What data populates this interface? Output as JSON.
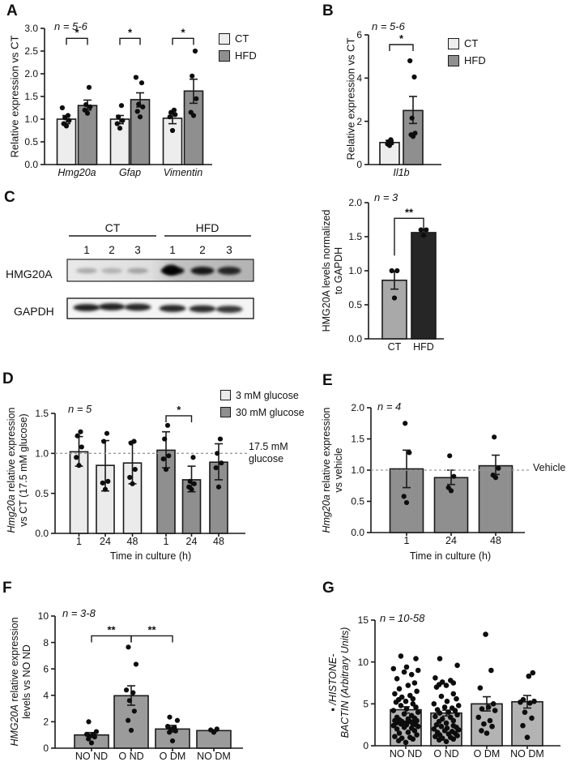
{
  "figure": {
    "panels": {
      "A": {
        "letter": "A",
        "n_label": "n = 5-6",
        "ylabel": {
          "em": "",
          "line1": "Relative expression vs CT",
          "line2": ""
        },
        "legend": [
          {
            "label": "CT",
            "color": "#ededed"
          },
          {
            "label": "HFD",
            "color": "#8f8f8f"
          }
        ]
      },
      "B": {
        "letter": "B",
        "n_label": "n = 5-6",
        "ylabel": {
          "em": "",
          "line1": "Relative expression vs CT",
          "line2": ""
        },
        "legend": [
          {
            "label": "CT",
            "color": "#ededed"
          },
          {
            "label": "HFD",
            "color": "#8f8f8f"
          }
        ]
      },
      "C": {
        "letter": "C",
        "n_label": "n = 3",
        "ylabel": {
          "em": "",
          "line1": "HMG20A levels normalized",
          "line2": "to GAPDH"
        },
        "blot": {
          "group_labels": [
            "CT",
            "HFD"
          ],
          "lane_numbers": [
            "1",
            "2",
            "3",
            "1",
            "2",
            "3"
          ],
          "row_labels": [
            "HMG20A",
            "GAPDH"
          ],
          "hmg20a_band_intensity": [
            0.5,
            0.42,
            0.55,
            0.95,
            0.88,
            0.8
          ],
          "gapdh_band_intensity": [
            0.95,
            0.95,
            0.92,
            0.92,
            0.9,
            0.85
          ]
        }
      },
      "D": {
        "letter": "D",
        "n_label": "n = 5",
        "ylabel": {
          "em": "Hmg20a",
          "line1": " relative expression",
          "line2": "vs CT (17.5 mM glucose)"
        },
        "xlabel": "Time in culture (h)",
        "legend": [
          {
            "label": "3 mM glucose",
            "color": "#ebebeb"
          },
          {
            "label": "30 mM glucose",
            "color": "#8f8f8f"
          }
        ],
        "annotation": [
          "17.5 mM",
          "glucose"
        ]
      },
      "E": {
        "letter": "E",
        "n_label": "n = 4",
        "ylabel": {
          "em": "Hmg20a",
          "line1": " relative expression",
          "line2": "vs vehicle"
        },
        "xlabel": "Time in culture (h)",
        "annotation": "Vehicle"
      },
      "F": {
        "letter": "F",
        "n_label": "n = 3-8",
        "ylabel": {
          "em": "HMG20A",
          "line1": " relative expression",
          "line2": "levels vs NO ND"
        }
      },
      "G": {
        "letter": "G",
        "n_label": "n = 10-58",
        "ylabel": {
          "em": "▪  /HISTONE-",
          "line1": "",
          "line2": "BACTIN (Arbitrary Units)"
        }
      }
    }
  },
  "chart_data": [
    {
      "panel": "A",
      "type": "bar",
      "title": "",
      "xlabel": "",
      "ylabel": "Relative expression vs CT",
      "ylim": [
        0,
        3
      ],
      "yticks": [
        0,
        0.5,
        1,
        1.5,
        2,
        2.5,
        3
      ],
      "ytick_labels": [
        "0.0",
        "0.5",
        "1.0",
        "1.5",
        "2.0",
        "2.5",
        "3.0"
      ],
      "categories": [
        "Hmg20a",
        "Gfap",
        "Vimentin"
      ],
      "categories_italic": true,
      "bars": [
        {
          "series": "CT",
          "category": "Hmg20a",
          "value": 1.0,
          "color": "#ededed",
          "err": [
            0.9,
            1.08
          ],
          "points": [
            0.85,
            0.9,
            0.97,
            1.03,
            1.08,
            1.25
          ]
        },
        {
          "series": "HFD",
          "category": "Hmg20a",
          "value": 1.3,
          "color": "#8f8f8f",
          "err": [
            1.2,
            1.42
          ],
          "points": [
            1.13,
            1.2,
            1.27,
            1.32,
            1.7
          ]
        },
        {
          "series": "CT",
          "category": "Gfap",
          "value": 1.0,
          "color": "#ededed",
          "err": [
            0.9,
            1.08
          ],
          "points": [
            0.8,
            0.9,
            0.97,
            1.05,
            1.3
          ]
        },
        {
          "series": "HFD",
          "category": "Gfap",
          "value": 1.43,
          "color": "#8f8f8f",
          "err": [
            1.27,
            1.58
          ],
          "points": [
            1.05,
            1.17,
            1.27,
            1.33,
            1.8,
            1.92
          ]
        },
        {
          "series": "CT",
          "category": "Vimentin",
          "value": 1.02,
          "color": "#ededed",
          "err": [
            0.9,
            1.13
          ],
          "points": [
            0.75,
            1.05,
            1.1,
            1.15,
            1.2
          ]
        },
        {
          "series": "HFD",
          "category": "Vimentin",
          "value": 1.62,
          "color": "#8f8f8f",
          "err": [
            1.35,
            1.88
          ],
          "points": [
            1.08,
            1.15,
            1.45,
            1.95,
            2.5
          ]
        }
      ],
      "sig": [
        {
          "from": 0,
          "to": 1,
          "label": "*",
          "y": 2.78
        },
        {
          "from": 2,
          "to": 3,
          "label": "*",
          "y": 2.78
        },
        {
          "from": 4,
          "to": 5,
          "label": "*",
          "y": 2.78
        }
      ],
      "dashed": null
    },
    {
      "panel": "B",
      "type": "bar",
      "ylabel": "Relative expression vs CT",
      "ylim": [
        0,
        6
      ],
      "yticks": [
        0,
        2,
        4,
        6
      ],
      "ytick_labels": [
        "0",
        "2",
        "4",
        "6"
      ],
      "categories": [
        "Il1b"
      ],
      "categories_italic": true,
      "bars": [
        {
          "series": "CT",
          "category": "Il1b",
          "value": 1.02,
          "color": "#ededed",
          "err": [
            0.93,
            1.12
          ],
          "points": [
            0.88,
            0.95,
            1.0,
            1.05,
            1.15
          ]
        },
        {
          "series": "HFD",
          "category": "Il1b",
          "value": 2.5,
          "color": "#8f8f8f",
          "err": [
            1.9,
            3.15
          ],
          "points": [
            1.3,
            1.38,
            1.45,
            2.15,
            4.05,
            4.8
          ]
        }
      ],
      "sig": [
        {
          "from": 0,
          "to": 1,
          "label": "*",
          "y": 5.55
        }
      ],
      "dashed": null
    },
    {
      "panel": "C",
      "type": "bar",
      "ylabel": "HMG20A levels normalized to GAPDH",
      "ylim": [
        0,
        2
      ],
      "yticks": [
        0,
        0.5,
        1,
        1.5,
        2
      ],
      "ytick_labels": [
        "0.0",
        "0.5",
        "1.0",
        "1.5",
        "2.0"
      ],
      "categories": [
        "CT",
        "HFD"
      ],
      "categories_italic": false,
      "bars": [
        {
          "series": "CT",
          "category": "CT",
          "value": 0.86,
          "color": "#a9a9a9",
          "err": [
            0.73,
            0.99
          ],
          "points": [
            0.6,
            1.0,
            1.0
          ]
        },
        {
          "series": "HFD",
          "category": "HFD",
          "value": 1.56,
          "color": "#262626",
          "err": [
            1.51,
            1.61
          ],
          "points": [
            1.52,
            1.6,
            1.6
          ]
        }
      ],
      "sig": [
        {
          "from": 0,
          "to": 1,
          "label": "**",
          "y": 1.77
        }
      ],
      "dashed": null
    },
    {
      "panel": "D",
      "type": "bar",
      "xlabel": "Time in culture (h)",
      "ylabel": "Hmg20a relative expression vs CT (17.5 mM glucose)",
      "ylim": [
        0,
        1.5
      ],
      "yticks": [
        0,
        0.5,
        1,
        1.5
      ],
      "ytick_labels": [
        "0.0",
        "0.5",
        "1.0",
        "1.5"
      ],
      "categories": [
        "1",
        "24",
        "48",
        "1",
        "24",
        "48"
      ],
      "categories_italic": false,
      "bars": [
        {
          "series": "3 mM glucose",
          "category": "1",
          "value": 1.02,
          "color": "#ebebeb",
          "err": [
            0.84,
            1.21
          ],
          "points": [
            0.85,
            0.95,
            1.08,
            1.22,
            1.27
          ]
        },
        {
          "series": "3 mM glucose",
          "category": "24",
          "value": 0.85,
          "color": "#ebebeb",
          "err": [
            0.53,
            1.16
          ],
          "points": [
            0.55,
            0.63,
            0.65,
            1.15,
            1.25
          ]
        },
        {
          "series": "3 mM glucose",
          "category": "48",
          "value": 0.88,
          "color": "#ebebeb",
          "err": [
            0.62,
            1.14
          ],
          "points": [
            0.62,
            0.7,
            0.8,
            1.13,
            1.15
          ]
        },
        {
          "series": "30 mM glucose",
          "category": "1",
          "value": 1.04,
          "color": "#8f8f8f",
          "err": [
            0.82,
            1.27
          ],
          "points": [
            0.8,
            0.93,
            0.97,
            1.18,
            1.35
          ]
        },
        {
          "series": "30 mM glucose",
          "category": "24",
          "value": 0.67,
          "color": "#8f8f8f",
          "err": [
            0.52,
            0.84
          ],
          "points": [
            0.55,
            0.58,
            0.62,
            0.65,
            0.95
          ]
        },
        {
          "series": "30 mM glucose",
          "category": "48",
          "value": 0.89,
          "color": "#8f8f8f",
          "err": [
            0.67,
            1.12
          ],
          "points": [
            0.58,
            0.82,
            0.88,
            1.0,
            1.18
          ]
        }
      ],
      "sig": [
        {
          "from": 3,
          "to": 4,
          "label": "*",
          "y": 1.47
        }
      ],
      "dashed": 1.0,
      "dashed_label": "17.5 mM glucose"
    },
    {
      "panel": "E",
      "type": "bar",
      "xlabel": "Time in culture (h)",
      "ylabel": "Hmg20a relative expression vs vehicle",
      "ylim": [
        0,
        2
      ],
      "yticks": [
        0,
        0.5,
        1,
        1.5,
        2
      ],
      "ytick_labels": [
        "0.0",
        "0.5",
        "1.0",
        "1.5",
        "2.0"
      ],
      "categories": [
        "1",
        "24",
        "48"
      ],
      "categories_italic": false,
      "bars": [
        {
          "series": "vehicle",
          "category": "1",
          "value": 1.02,
          "color": "#8f8f8f",
          "err": [
            0.72,
            1.32
          ],
          "points": [
            0.48,
            0.58,
            1.28,
            1.75
          ]
        },
        {
          "series": "vehicle",
          "category": "24",
          "value": 0.88,
          "color": "#8f8f8f",
          "err": [
            0.77,
            1.0
          ],
          "points": [
            0.67,
            0.72,
            0.9,
            1.23
          ]
        },
        {
          "series": "vehicle",
          "category": "48",
          "value": 1.07,
          "color": "#8f8f8f",
          "err": [
            0.93,
            1.24
          ],
          "points": [
            0.88,
            0.92,
            1.03,
            1.53
          ]
        }
      ],
      "sig": [],
      "dashed": 1.0,
      "dashed_label": "Vehicle"
    },
    {
      "panel": "F",
      "type": "bar",
      "ylabel": "HMG20A relative expression levels vs NO ND",
      "ylim": [
        0,
        10
      ],
      "yticks": [
        0,
        2,
        4,
        6,
        8,
        10
      ],
      "ytick_labels": [
        "0",
        "2",
        "4",
        "6",
        "8",
        "10"
      ],
      "categories": [
        "NO ND",
        "O ND",
        "O DM",
        "NO DM"
      ],
      "categories_italic": false,
      "bars": [
        {
          "series": "",
          "category": "NO ND",
          "value": 1.0,
          "color": "#9b9b9b",
          "err": [
            0.82,
            1.18
          ],
          "points": [
            0.4,
            0.7,
            0.85,
            0.92,
            1.0,
            1.05,
            1.25,
            2.0
          ]
        },
        {
          "series": "",
          "category": "O ND",
          "value": 3.97,
          "color": "#9b9b9b",
          "err": [
            3.25,
            4.72
          ],
          "points": [
            1.35,
            2.1,
            2.8,
            3.6,
            4.2,
            4.4,
            6.35,
            7.65
          ]
        },
        {
          "series": "",
          "category": "O DM",
          "value": 1.45,
          "color": "#9b9b9b",
          "err": [
            1.22,
            1.72
          ],
          "points": [
            0.55,
            1.2,
            1.3,
            1.45,
            1.55,
            1.65,
            2.1,
            2.35
          ]
        },
        {
          "series": "",
          "category": "NO DM",
          "value": 1.33,
          "color": "#9b9b9b",
          "err": [
            1.27,
            1.4
          ],
          "points": [
            1.2,
            1.38,
            1.45
          ]
        }
      ],
      "sig": [
        {
          "from": 0,
          "to": 1,
          "label": "**",
          "y": 8.5
        },
        {
          "from": 1,
          "to": 2,
          "label": "**",
          "y": 8.5
        }
      ],
      "dashed": null
    },
    {
      "panel": "G",
      "type": "bar",
      "ylabel": "/HISTONE-BACTIN (Arbitrary Units)",
      "ylim": [
        0,
        15
      ],
      "yticks": [
        0,
        5,
        10,
        15
      ],
      "ytick_labels": [
        "0",
        "5",
        "10",
        "15"
      ],
      "categories": [
        "NO ND",
        "O ND",
        "O DM",
        "NO DM"
      ],
      "categories_italic": false,
      "bars": [
        {
          "series": "",
          "category": "NO ND",
          "value": 4.3,
          "color": "#b3b3b3",
          "err": [
            3.9,
            4.65
          ],
          "points": [
            0.4,
            0.6,
            0.8,
            0.9,
            1.0,
            1.1,
            1.3,
            1.5,
            1.6,
            1.8,
            2.0,
            2.1,
            2.2,
            2.3,
            2.4,
            2.5,
            2.5,
            2.6,
            2.6,
            2.7,
            2.7,
            2.8,
            2.8,
            2.9,
            2.9,
            3.0,
            3.0,
            3.1,
            3.2,
            3.3,
            3.4,
            3.6,
            3.8,
            4.0,
            4.2,
            4.4,
            4.6,
            4.8,
            5.0,
            5.2,
            5.3,
            5.5,
            5.6,
            5.8,
            6.0,
            6.2,
            6.5,
            6.8,
            7.2,
            7.5,
            8.0,
            8.5,
            8.8,
            9.0,
            9.2,
            9.4,
            10.4,
            10.7
          ]
        },
        {
          "series": "",
          "category": "O ND",
          "value": 3.9,
          "color": "#b3b3b3",
          "err": [
            3.55,
            4.25
          ],
          "points": [
            0.5,
            0.7,
            0.8,
            0.9,
            1.0,
            1.1,
            1.2,
            1.3,
            1.4,
            1.5,
            1.6,
            1.7,
            1.8,
            1.9,
            2.0,
            2.1,
            2.2,
            2.3,
            2.4,
            2.5,
            2.7,
            2.9,
            3.0,
            3.2,
            3.4,
            3.5,
            3.7,
            3.9,
            4.0,
            4.2,
            4.3,
            4.5,
            4.6,
            4.8,
            5.0,
            5.3,
            5.6,
            5.9,
            6.2,
            7.0,
            7.2,
            7.3,
            7.5,
            7.6,
            7.8,
            8.1,
            9.6,
            10.4
          ]
        },
        {
          "series": "",
          "category": "O DM",
          "value": 5.0,
          "color": "#b3b3b3",
          "err": [
            4.15,
            5.85
          ],
          "points": [
            1.5,
            1.8,
            2.3,
            2.6,
            3.0,
            3.4,
            4.2,
            4.4,
            4.6,
            5.0,
            6.9,
            9.0,
            13.3
          ]
        },
        {
          "series": "",
          "category": "NO DM",
          "value": 5.25,
          "color": "#b3b3b3",
          "err": [
            4.5,
            6.0
          ],
          "points": [
            1.0,
            2.4,
            3.3,
            4.0,
            5.1,
            5.2,
            5.3,
            5.5,
            8.3,
            8.7
          ]
        }
      ],
      "sig": [],
      "dashed": null
    }
  ]
}
